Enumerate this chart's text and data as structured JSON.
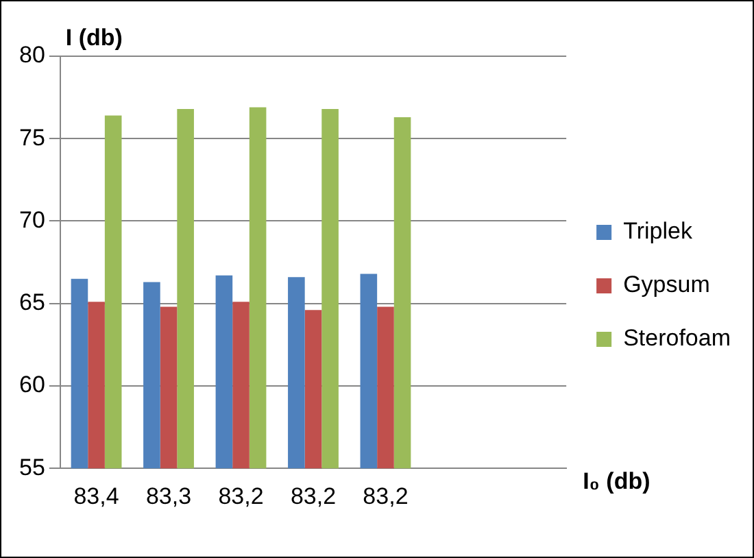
{
  "chart_data": {
    "type": "bar",
    "xlabel": "I₀ (db)",
    "ylabel": "I (db)",
    "categories": [
      "83,4",
      "83,3",
      "83,2",
      "83,2",
      "83,2",
      null,
      null
    ],
    "series": [
      {
        "name": "Triplek",
        "color": "#4f81bd",
        "values": [
          66.5,
          66.3,
          66.7,
          66.6,
          66.8,
          null,
          null
        ]
      },
      {
        "name": "Gypsum",
        "color": "#c0504d",
        "values": [
          65.1,
          64.8,
          65.1,
          64.6,
          64.8,
          null,
          null
        ]
      },
      {
        "name": "Sterofoam",
        "color": "#9bbb59",
        "values": [
          76.4,
          76.8,
          76.9,
          76.8,
          76.3,
          null,
          null
        ]
      }
    ],
    "ylim": [
      55,
      80
    ],
    "yticks": [
      55,
      60,
      65,
      70,
      75,
      80
    ],
    "grid": "y",
    "legend": "right"
  }
}
